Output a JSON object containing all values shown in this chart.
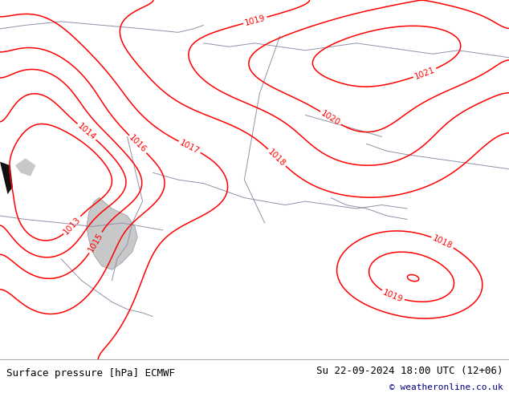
{
  "title_left": "Surface pressure [hPa] ECMWF",
  "title_right": "Su 22-09-2024 18:00 UTC (12+06)",
  "copyright": "© weatheronline.co.uk",
  "bg_map_color": "#c8f0a0",
  "contour_color": "#ff0000",
  "border_color": "#9090a8",
  "sea_color": "#c8c8c8",
  "text_color": "#000080",
  "footer_bg": "#d8d8d8",
  "footer_text_color": "#000000",
  "figsize": [
    6.34,
    4.9
  ],
  "dpi": 100,
  "contour_lw": 1.1,
  "label_fontsize": 7.5,
  "pressure_levels": [
    1013,
    1014,
    1015,
    1016,
    1017,
    1018,
    1019,
    1020,
    1021
  ]
}
